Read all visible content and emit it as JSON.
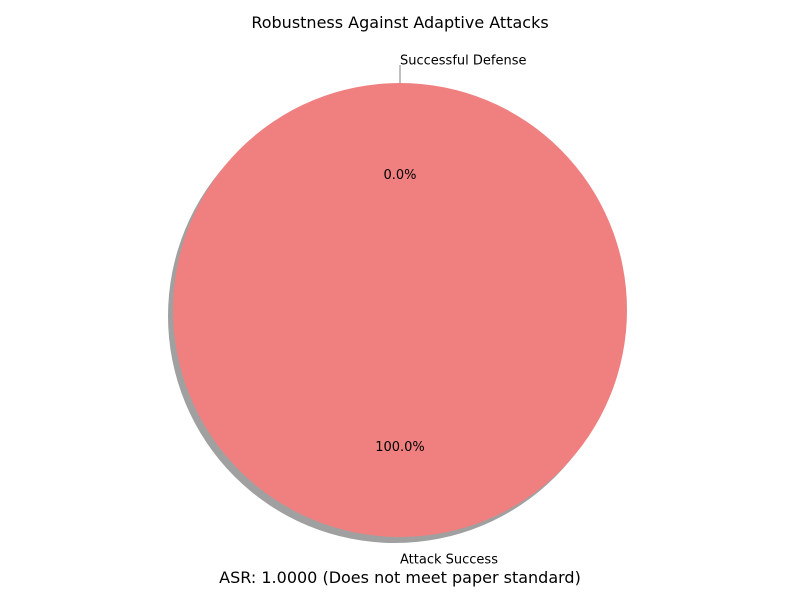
{
  "chart_data": {
    "type": "pie",
    "title": "Robustness Against Adaptive Attacks",
    "slices": [
      {
        "label": "Successful Defense",
        "value": 0.0,
        "pct_label": "0.0%",
        "color": "#90ee90"
      },
      {
        "label": "Attack Success",
        "value": 100.0,
        "pct_label": "100.0%",
        "color": "#f08080"
      }
    ],
    "shadow": true,
    "legend": "none"
  },
  "caption": "ASR: 1.0000 (Does not meet paper standard)",
  "colors": {
    "shadow": "#808080",
    "leader_line": "#808080",
    "text": "#000000"
  }
}
